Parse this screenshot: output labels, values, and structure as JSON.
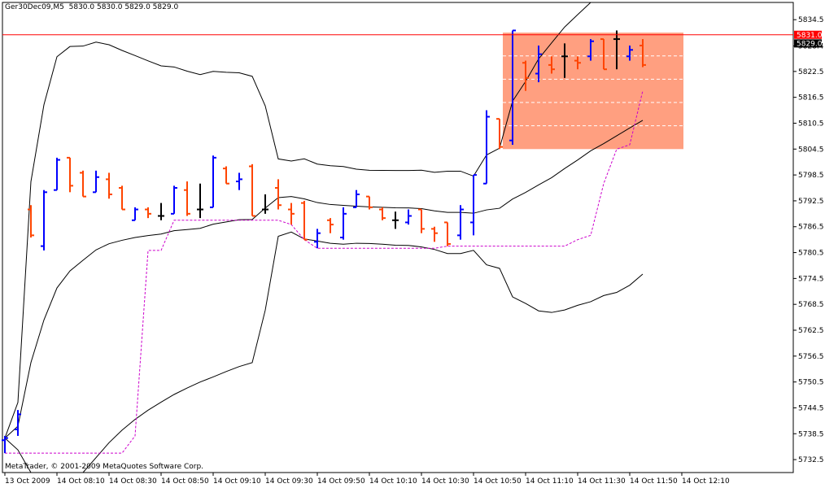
{
  "header": {
    "symbol": "Ger30Dec09,M5",
    "ohlc": "5830.0 5830.0 5829.0 5829.0"
  },
  "copyright": "MetaTrader, © 2001-2009 MetaQuotes Software Corp.",
  "colors": {
    "up": "#0000ff",
    "down": "#ff4500",
    "doji": "#000000",
    "band": "#000000",
    "trail": "#cc00cc",
    "rect": "#ff9f80",
    "price_line": "#ff0000",
    "price_tag_bg": "#ff0000",
    "current_tag_bg": "#000000"
  },
  "chart_data": {
    "type": "ohlc",
    "y_axis": {
      "min": 5729.5,
      "max": 5838.5,
      "ticks": [
        "5834.5",
        "5828.4",
        "5822.5",
        "5816.5",
        "5810.5",
        "5804.5",
        "5798.5",
        "5792.5",
        "5786.5",
        "5780.5",
        "5774.5",
        "5768.5",
        "5762.5",
        "5756.5",
        "5750.5",
        "5744.5",
        "5738.5",
        "5732.5"
      ]
    },
    "x_axis": {
      "ticks": [
        {
          "label": "13 Oct 2009",
          "bar": 0
        },
        {
          "label": "14 Oct 08:10",
          "bar": 4
        },
        {
          "label": "14 Oct 08:30",
          "bar": 8
        },
        {
          "label": "14 Oct 08:50",
          "bar": 12
        },
        {
          "label": "14 Oct 09:10",
          "bar": 16
        },
        {
          "label": "14 Oct 09:30",
          "bar": 20
        },
        {
          "label": "14 Oct 09:50",
          "bar": 24
        },
        {
          "label": "14 Oct 10:10",
          "bar": 28
        },
        {
          "label": "14 Oct 10:30",
          "bar": 32
        },
        {
          "label": "14 Oct 10:50",
          "bar": 36
        },
        {
          "label": "14 Oct 11:10",
          "bar": 40
        },
        {
          "label": "14 Oct 11:30",
          "bar": 44
        },
        {
          "label": "14 Oct 11:50",
          "bar": 48
        },
        {
          "label": "14 Oct 12:10",
          "bar": 52
        }
      ]
    },
    "bars": [
      [
        5737.0,
        5738.0,
        5734.0,
        5737.5
      ],
      [
        5739.5,
        5744.0,
        5738.0,
        5743.0
      ],
      [
        5790.5,
        5791.5,
        5784.0,
        5784.5
      ],
      [
        5782.0,
        5795.0,
        5781.0,
        5794.5
      ],
      [
        5795.0,
        5802.5,
        5795.0,
        5802.0
      ],
      [
        5802.5,
        5802.5,
        5794.5,
        5796.0
      ],
      [
        5799.0,
        5799.5,
        5793.5,
        5793.5
      ],
      [
        5794.5,
        5799.5,
        5794.5,
        5798.0
      ],
      [
        5797.5,
        5799.0,
        5793.0,
        5794.0
      ],
      [
        5795.5,
        5796.0,
        5790.5,
        5790.5
      ],
      [
        5788.0,
        5791.0,
        5788.0,
        5790.5
      ],
      [
        5790.5,
        5791.0,
        5788.5,
        5789.5
      ],
      [
        5789.0,
        5792.0,
        5788.0,
        5789.0
      ],
      [
        5789.5,
        5796.0,
        5789.5,
        5795.5
      ],
      [
        5795.0,
        5797.0,
        5789.0,
        5789.5
      ],
      [
        5790.5,
        5796.5,
        5788.5,
        5790.5
      ],
      [
        5791.0,
        5803.0,
        5791.0,
        5802.5
      ],
      [
        5800.0,
        5800.5,
        5796.5,
        5796.5
      ],
      [
        5797.0,
        5799.0,
        5795.0,
        5797.5
      ],
      [
        5800.5,
        5801.0,
        5789.0,
        5789.0
      ],
      [
        5790.5,
        5794.0,
        5789.5,
        5790.5
      ],
      [
        5795.5,
        5797.5,
        5790.5,
        5791.5
      ],
      [
        5790.5,
        5792.0,
        5787.0,
        5789.5
      ],
      [
        5792.0,
        5792.5,
        5783.5,
        5783.5
      ],
      [
        5783.0,
        5786.0,
        5781.5,
        5785.0
      ],
      [
        5788.0,
        5788.5,
        5785.0,
        5787.0
      ],
      [
        5784.0,
        5791.0,
        5783.5,
        5789.5
      ],
      [
        5791.0,
        5795.0,
        5791.0,
        5794.0
      ],
      [
        5793.5,
        5793.5,
        5790.5,
        5791.0
      ],
      [
        5790.5,
        5791.0,
        5788.0,
        5788.5
      ],
      [
        5788.0,
        5790.0,
        5786.0,
        5788.0
      ],
      [
        5787.5,
        5790.5,
        5787.0,
        5789.0
      ],
      [
        5790.5,
        5790.5,
        5785.0,
        5786.0
      ],
      [
        5786.0,
        5786.5,
        5783.0,
        5785.0
      ],
      [
        5787.5,
        5787.5,
        5782.0,
        5782.5
      ],
      [
        5784.5,
        5791.5,
        5783.5,
        5790.5
      ],
      [
        5787.5,
        5798.5,
        5784.5,
        5798.5
      ],
      [
        5796.5,
        5813.5,
        5796.5,
        5812.0
      ],
      [
        5811.5,
        5811.5,
        5804.5,
        5805.0
      ],
      [
        5806.5,
        5832.0,
        5805.5,
        5832.0
      ],
      [
        5824.5,
        5825.0,
        5818.0,
        5821.0
      ],
      [
        5822.0,
        5828.5,
        5820.0,
        5826.5
      ],
      [
        5824.0,
        5826.0,
        5822.0,
        5823.0
      ],
      [
        5826.0,
        5829.0,
        5821.0,
        5826.0
      ],
      [
        5825.0,
        5826.0,
        5823.0,
        5824.5
      ],
      [
        5826.0,
        5830.0,
        5825.0,
        5829.5
      ],
      [
        5830.0,
        5830.0,
        5823.0,
        5823.0
      ],
      [
        5830.0,
        5832.0,
        5823.0,
        5830.0
      ],
      [
        5826.0,
        5828.5,
        5825.0,
        5827.5
      ],
      [
        5828.5,
        5830.0,
        5823.5,
        5824.0
      ]
    ],
    "rectangle": {
      "bar_start": 38,
      "bar_end": 52,
      "high": 5831.5,
      "low": 5804.5
    },
    "price_tags": [
      {
        "label": "5831.0",
        "value": 5831.0
      },
      {
        "label": "5829.0",
        "value": 5829.0
      }
    ]
  }
}
